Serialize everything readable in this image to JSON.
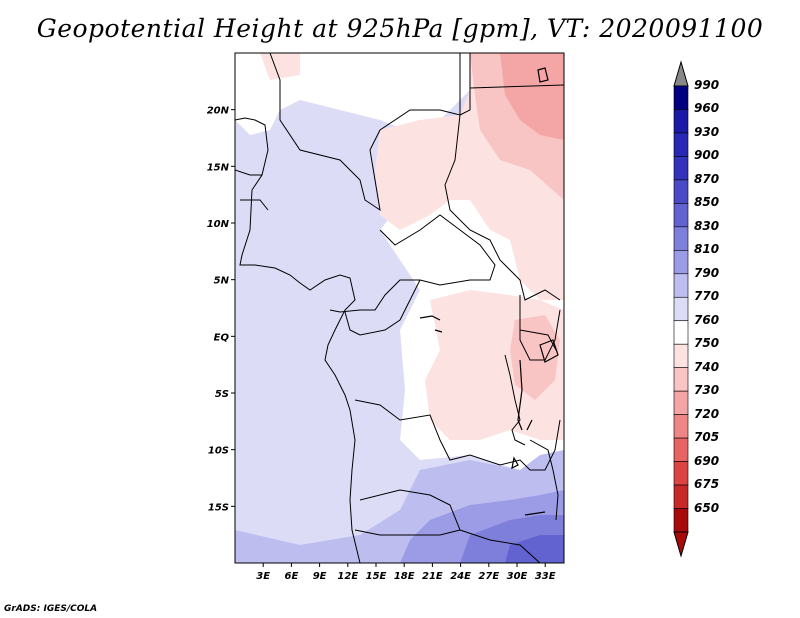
{
  "title": "Geopotential Height at 925hPa [gpm], VT: 2020091100",
  "credit": "GrADS: IGES/COLA",
  "map": {
    "lon_range": [
      0,
      35
    ],
    "lat_range": [
      -20,
      25
    ],
    "lon_ticks": [
      "3E",
      "6E",
      "9E",
      "12E",
      "15E",
      "18E",
      "21E",
      "24E",
      "27E",
      "30E",
      "33E"
    ],
    "lon_tick_values": [
      3,
      6,
      9,
      12,
      15,
      18,
      21,
      24,
      27,
      30,
      33
    ],
    "lat_ticks": [
      "20N",
      "15N",
      "10N",
      "5N",
      "EQ",
      "5S",
      "10S",
      "15S"
    ],
    "lat_tick_values": [
      20,
      15,
      10,
      5,
      0,
      -5,
      -10,
      -15
    ]
  },
  "colorbar": {
    "levels": [
      "990",
      "960",
      "930",
      "900",
      "870",
      "850",
      "830",
      "810",
      "790",
      "770",
      "760",
      "750",
      "740",
      "730",
      "720",
      "705",
      "690",
      "675",
      "650"
    ],
    "colors": [
      "#000080",
      "#1a1aa6",
      "#2828b4",
      "#3232bd",
      "#4a4ac6",
      "#6262d0",
      "#7e7edb",
      "#9c9ce6",
      "#bdbdf0",
      "#dcdcf7",
      "#ffffff",
      "#fde2e2",
      "#f9c4c4",
      "#f4a6a6",
      "#ee8686",
      "#e76464",
      "#dc4444",
      "#c82828",
      "#a80a0a"
    ],
    "top_arrow_color": "#888888",
    "bottom_arrow_color": "#a80a0a"
  }
}
